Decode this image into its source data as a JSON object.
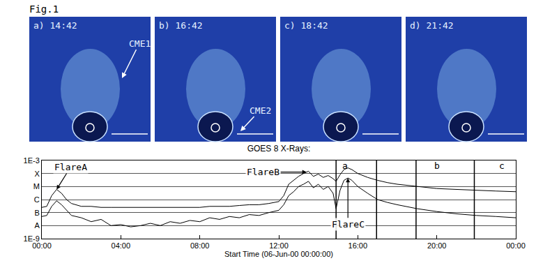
{
  "figure_label": "Fig.1",
  "panels": [
    {
      "label": "a) 14:42",
      "note": "CME1"
    },
    {
      "label": "b) 16:42",
      "note": "CME2"
    },
    {
      "label": "c) 18:42"
    },
    {
      "label": "d) 21:42"
    }
  ],
  "chart_data": {
    "type": "line",
    "title": "GOES 8 X-Rays:",
    "x_label": "Start Time (06-Jun-00 00:00:00)",
    "log": "y",
    "grid": true,
    "xlim": [
      0,
      24
    ],
    "xticks": [
      {
        "value": 0,
        "label": "00:00"
      },
      {
        "value": 4,
        "label": "04:00"
      },
      {
        "value": 8,
        "label": "08:00"
      },
      {
        "value": 12,
        "label": "12:00"
      },
      {
        "value": 16,
        "label": "16:00"
      },
      {
        "value": 20,
        "label": "20:00"
      },
      {
        "value": 24,
        "label": "00:00"
      }
    ],
    "ylim": [
      1e-09,
      0.001
    ],
    "yticks": [
      {
        "value": 1e-09,
        "label": "1E-9"
      },
      {
        "value": 1e-08,
        "label": "A"
      },
      {
        "value": 1e-07,
        "label": "B"
      },
      {
        "value": 1e-06,
        "label": "C"
      },
      {
        "value": 1e-05,
        "label": "M"
      },
      {
        "value": 0.0001,
        "label": "X"
      },
      {
        "value": 0.001,
        "label": "1E-3"
      }
    ],
    "x": [
      0,
      0.25,
      0.5,
      0.75,
      1,
      1.25,
      1.5,
      2,
      2.5,
      3,
      3.5,
      4,
      4.5,
      5,
      5.5,
      6,
      6.5,
      7,
      7.5,
      8,
      8.5,
      9,
      9.5,
      10,
      10.5,
      11,
      11.5,
      12,
      12.25,
      12.5,
      12.75,
      13,
      13.25,
      13.5,
      13.75,
      14,
      14.25,
      14.5,
      14.75,
      14.9,
      15.1,
      15.3,
      15.5,
      15.7,
      16,
      16.5,
      17,
      17.5,
      18,
      19,
      20,
      21,
      22,
      23,
      24
    ],
    "series": [
      {
        "color": "#000000",
        "values": [
          2.5e-07,
          3e-07,
          2e-06,
          6e-06,
          3e-06,
          1e-06,
          5e-07,
          3e-07,
          3e-07,
          2.5e-07,
          2.5e-07,
          2.5e-07,
          2.5e-07,
          2.5e-07,
          2.5e-07,
          2.5e-07,
          2.5e-07,
          2.5e-07,
          2.5e-07,
          2.5e-07,
          3e-07,
          3e-07,
          3e-07,
          3.5e-07,
          4e-07,
          4e-07,
          5e-07,
          7e-07,
          2e-06,
          1.5e-05,
          3e-05,
          6e-05,
          0.0001,
          0.00015,
          6e-05,
          9e-05,
          5e-05,
          7e-05,
          4e-05,
          2.5e-05,
          8e-05,
          0.0002,
          0.00027,
          0.0002,
          0.0001,
          5e-05,
          3e-05,
          2e-05,
          1.5e-05,
          1e-05,
          7e-06,
          6e-06,
          5e-06,
          4.5e-06,
          4e-06
        ]
      },
      {
        "color": "#000000",
        "values": [
          5e-08,
          6e-08,
          3e-07,
          8e-07,
          4e-07,
          1.5e-07,
          6e-08,
          4e-08,
          2e-08,
          3e-08,
          1e-08,
          1.2e-08,
          8e-09,
          1e-08,
          1.5e-08,
          1e-08,
          2e-08,
          1.5e-08,
          2.5e-08,
          2e-08,
          4e-08,
          3e-08,
          5e-08,
          4e-08,
          7e-08,
          6e-08,
          1e-07,
          1.5e-07,
          4e-07,
          2e-06,
          4e-06,
          1e-05,
          1.5e-05,
          2.5e-05,
          8e-06,
          1.5e-05,
          6e-06,
          1e-05,
          3e-06,
          2e-07,
          5e-06,
          3e-05,
          4.5e-05,
          3e-05,
          1e-05,
          3e-06,
          1e-06,
          6e-07,
          4e-07,
          2e-07,
          1.2e-07,
          8e-08,
          6e-08,
          5e-08,
          4e-08
        ]
      }
    ],
    "vlines": [
      14.9,
      16.95,
      18.95,
      21.9
    ],
    "flares": [
      {
        "text": "FlareA",
        "x": 0.75,
        "y": 6e-06
      },
      {
        "text": "FlareB",
        "x": 13.4,
        "y": 0.00013
      },
      {
        "text": "FlareC",
        "x": 15.5,
        "y": 4.5e-05
      }
    ],
    "interval_labels": [
      {
        "text": "a",
        "x": 15.35,
        "y": 0.0004
      },
      {
        "text": "b",
        "x": 20,
        "y": 0.0004
      },
      {
        "text": "c",
        "x": 23.3,
        "y": 0.0004
      }
    ]
  }
}
